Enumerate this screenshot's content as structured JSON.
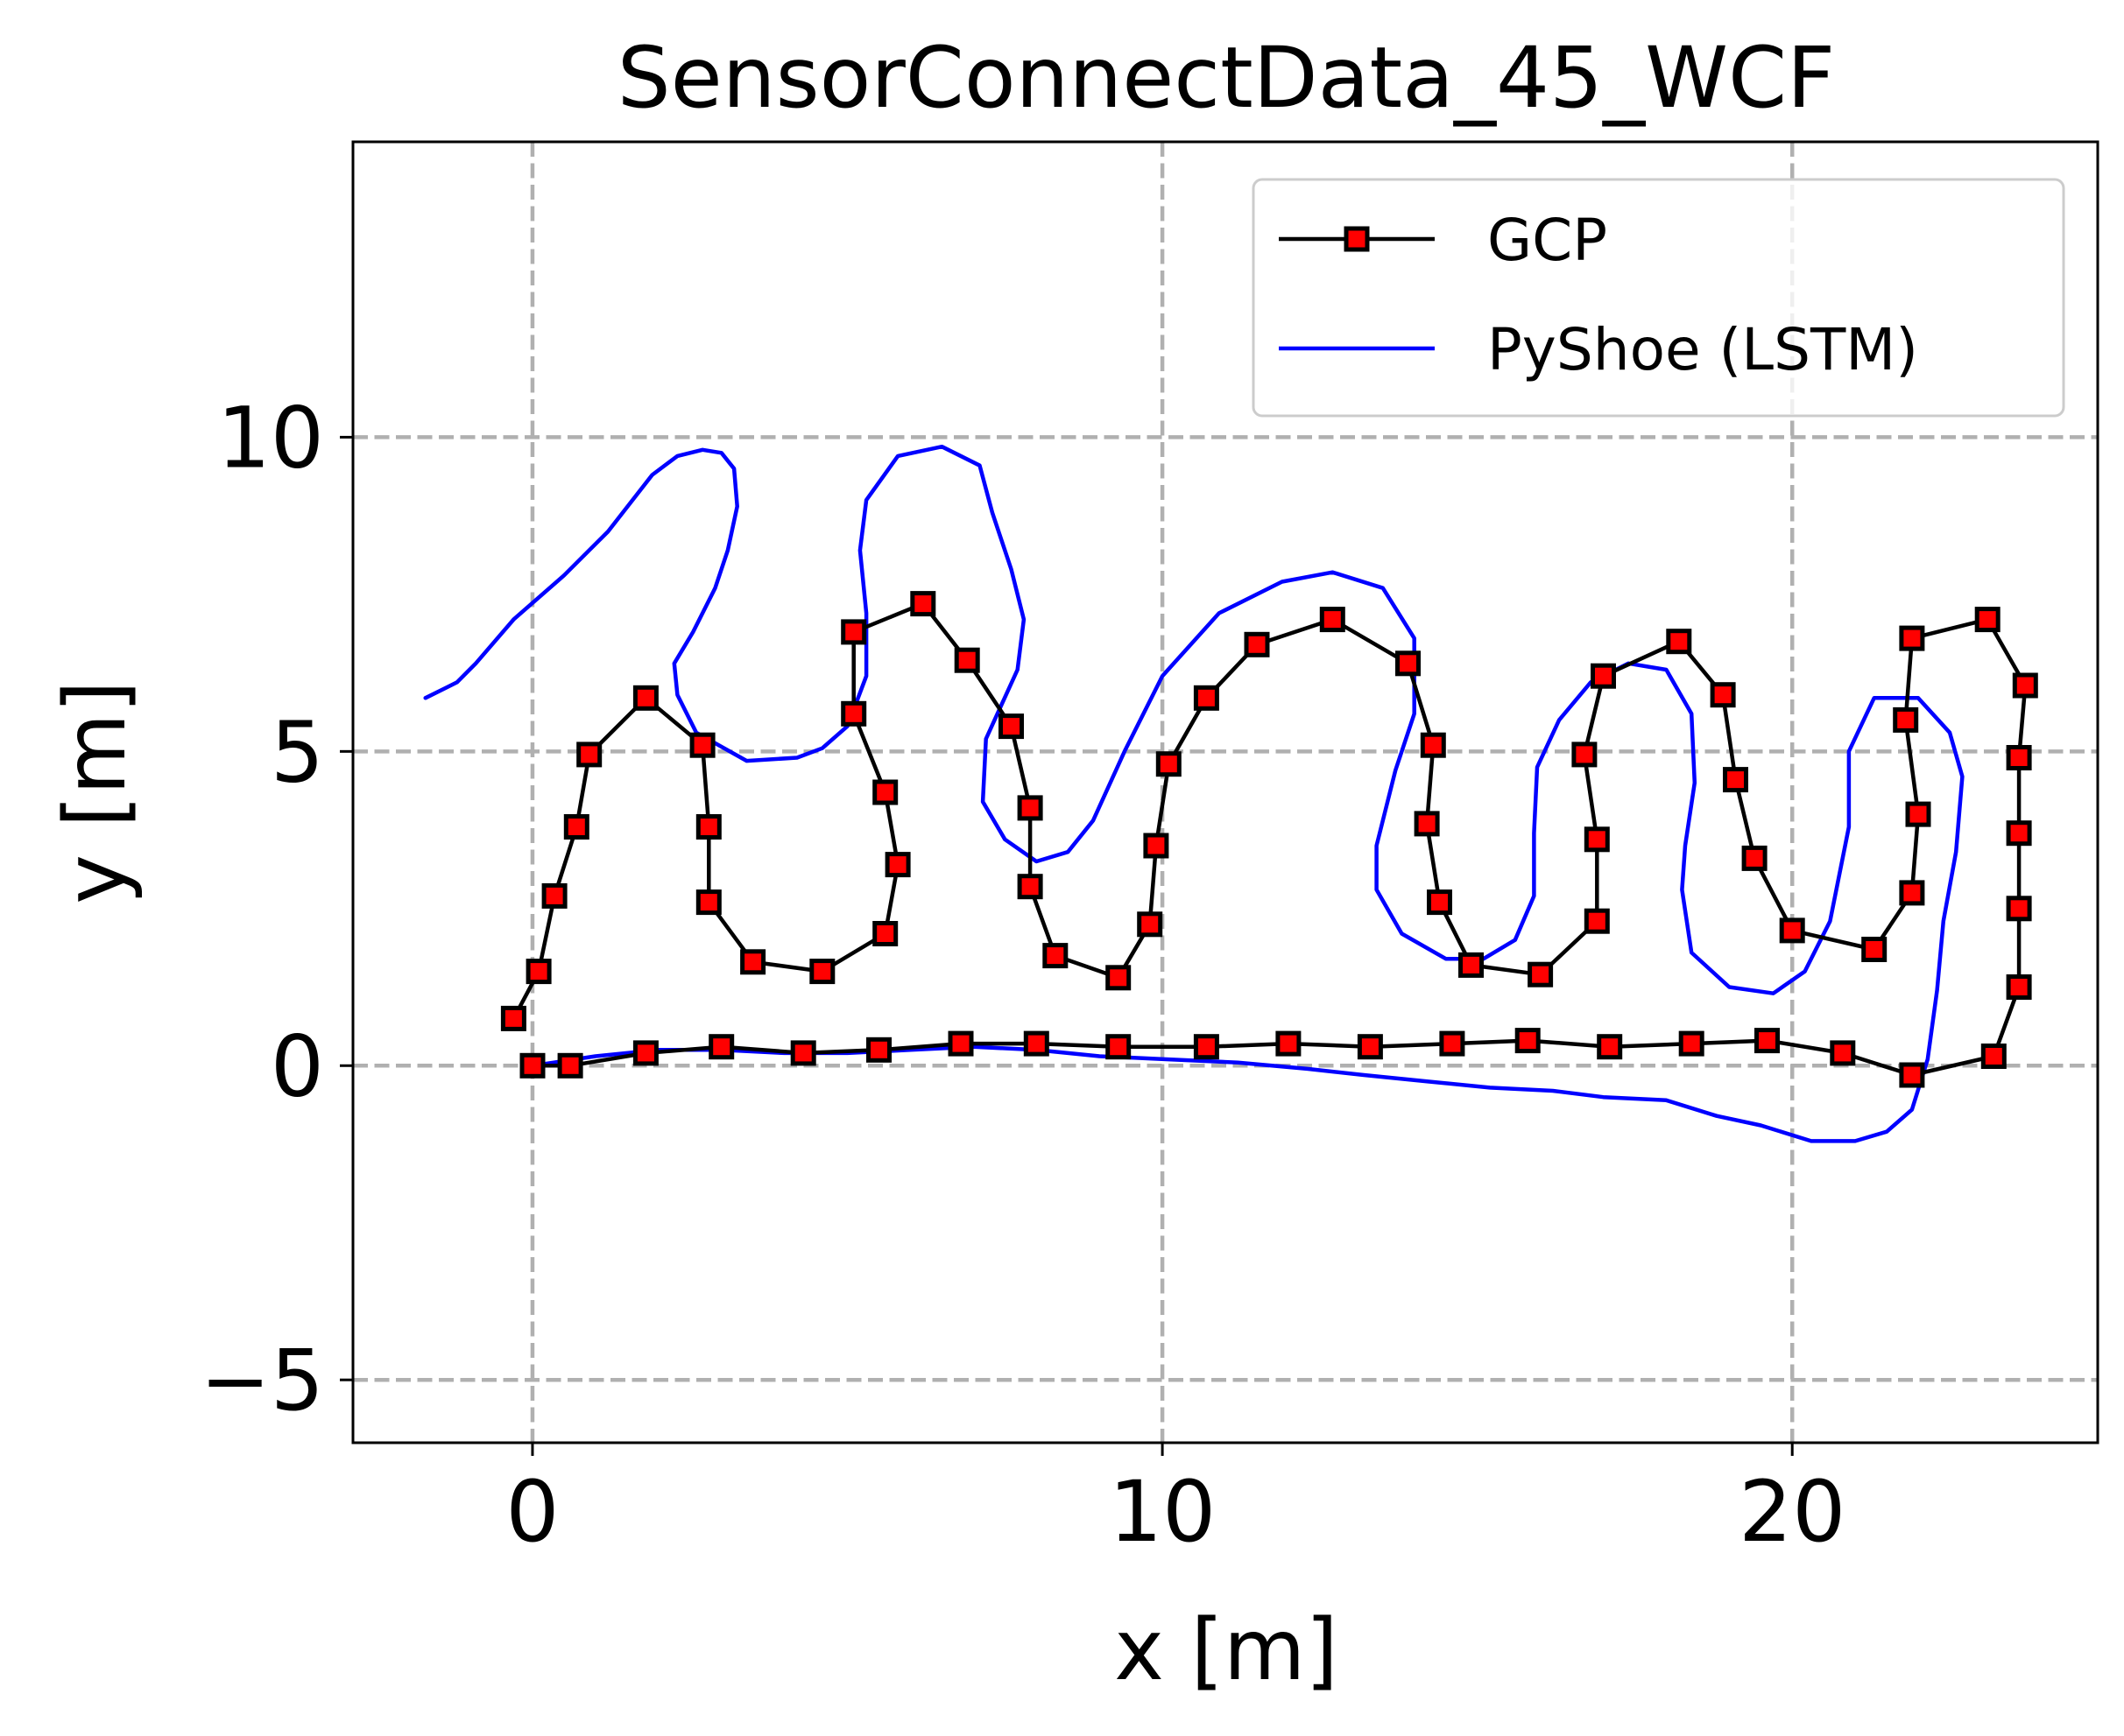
{
  "chart_data": {
    "type": "line",
    "title": "SensorConnectData_45_WCF",
    "xlabel": "x [m]",
    "ylabel": "y [m]",
    "xlim": [
      -2.85,
      24.85
    ],
    "ylim": [
      -6.0,
      14.7
    ],
    "xticks": [
      0,
      10,
      20
    ],
    "yticks": [
      -5,
      0,
      5,
      10
    ],
    "xtick_labels": [
      "0",
      "10",
      "20"
    ],
    "ytick_labels": [
      "−5",
      "0",
      "5",
      "10"
    ],
    "grid": true,
    "legend_position": "top-right",
    "series": [
      {
        "name": "GCP",
        "color": "#000000",
        "marker": "square",
        "marker_color": "#ff0000",
        "points": [
          [
            0.0,
            0.0
          ],
          [
            0.6,
            0.0
          ],
          [
            1.8,
            0.2
          ],
          [
            3.0,
            0.3
          ],
          [
            4.3,
            0.2
          ],
          [
            5.5,
            0.25
          ],
          [
            6.8,
            0.35
          ],
          [
            8.0,
            0.35
          ],
          [
            9.3,
            0.3
          ],
          [
            10.7,
            0.3
          ],
          [
            12.0,
            0.35
          ],
          [
            13.3,
            0.3
          ],
          [
            14.6,
            0.35
          ],
          [
            15.8,
            0.4
          ],
          [
            17.1,
            0.3
          ],
          [
            18.4,
            0.35
          ],
          [
            19.6,
            0.4
          ],
          [
            20.8,
            0.2
          ],
          [
            21.9,
            -0.15
          ],
          [
            23.2,
            0.15
          ],
          [
            23.6,
            1.25
          ],
          [
            23.6,
            2.5
          ],
          [
            23.6,
            3.7
          ],
          [
            23.6,
            4.9
          ],
          [
            23.7,
            6.05
          ],
          [
            23.1,
            7.1
          ],
          [
            21.9,
            6.8
          ],
          [
            21.8,
            5.5
          ],
          [
            22.0,
            4.0
          ],
          [
            21.9,
            2.75
          ],
          [
            21.3,
            1.85
          ],
          [
            20.0,
            2.15
          ],
          [
            19.4,
            3.3
          ],
          [
            19.1,
            4.55
          ],
          [
            18.9,
            5.9
          ],
          [
            18.2,
            6.75
          ],
          [
            17.0,
            6.2
          ],
          [
            16.7,
            4.95
          ],
          [
            16.9,
            3.6
          ],
          [
            16.9,
            2.3
          ],
          [
            16.0,
            1.45
          ],
          [
            14.9,
            1.6
          ],
          [
            14.4,
            2.6
          ],
          [
            14.2,
            3.85
          ],
          [
            14.3,
            5.1
          ],
          [
            13.9,
            6.4
          ],
          [
            12.7,
            7.1
          ],
          [
            11.5,
            6.7
          ],
          [
            10.7,
            5.85
          ],
          [
            10.1,
            4.8
          ],
          [
            9.9,
            3.5
          ],
          [
            9.8,
            2.25
          ],
          [
            9.3,
            1.4
          ],
          [
            8.3,
            1.75
          ],
          [
            7.9,
            2.85
          ],
          [
            7.9,
            4.1
          ],
          [
            7.6,
            5.4
          ],
          [
            6.9,
            6.45
          ],
          [
            6.2,
            7.35
          ],
          [
            5.1,
            6.9
          ],
          [
            5.1,
            5.6
          ],
          [
            5.6,
            4.35
          ],
          [
            5.8,
            3.2
          ],
          [
            5.6,
            2.1
          ],
          [
            4.6,
            1.5
          ],
          [
            3.5,
            1.65
          ],
          [
            2.8,
            2.6
          ],
          [
            2.8,
            3.8
          ],
          [
            2.7,
            5.1
          ],
          [
            1.8,
            5.85
          ],
          [
            0.9,
            4.95
          ],
          [
            0.7,
            3.8
          ],
          [
            0.35,
            2.7
          ],
          [
            0.1,
            1.5
          ],
          [
            -0.3,
            0.75
          ]
        ]
      },
      {
        "name": "PyShoe (LSTM)",
        "color": "#0000ff",
        "marker": "none",
        "points": [
          [
            -1.7,
            5.85
          ],
          [
            -1.2,
            6.1
          ],
          [
            -0.9,
            6.4
          ],
          [
            -0.3,
            7.1
          ],
          [
            0.5,
            7.8
          ],
          [
            1.2,
            8.5
          ],
          [
            1.9,
            9.4
          ],
          [
            2.3,
            9.7
          ],
          [
            2.7,
            9.8
          ],
          [
            3.0,
            9.75
          ],
          [
            3.2,
            9.5
          ],
          [
            3.25,
            8.9
          ],
          [
            3.1,
            8.2
          ],
          [
            2.9,
            7.6
          ],
          [
            2.55,
            6.9
          ],
          [
            2.25,
            6.4
          ],
          [
            2.3,
            5.9
          ],
          [
            2.6,
            5.3
          ],
          [
            3.4,
            4.85
          ],
          [
            4.2,
            4.9
          ],
          [
            4.6,
            5.05
          ],
          [
            5.0,
            5.4
          ],
          [
            5.3,
            6.2
          ],
          [
            5.3,
            7.2
          ],
          [
            5.2,
            8.2
          ],
          [
            5.3,
            9.0
          ],
          [
            5.8,
            9.7
          ],
          [
            6.5,
            9.85
          ],
          [
            7.1,
            9.55
          ],
          [
            7.3,
            8.8
          ],
          [
            7.6,
            7.9
          ],
          [
            7.8,
            7.1
          ],
          [
            7.7,
            6.3
          ],
          [
            7.2,
            5.2
          ],
          [
            7.15,
            4.2
          ],
          [
            7.5,
            3.6
          ],
          [
            8.0,
            3.25
          ],
          [
            8.5,
            3.4
          ],
          [
            8.9,
            3.9
          ],
          [
            9.4,
            5.0
          ],
          [
            10.0,
            6.2
          ],
          [
            10.9,
            7.2
          ],
          [
            11.9,
            7.7
          ],
          [
            12.7,
            7.85
          ],
          [
            13.5,
            7.6
          ],
          [
            14.0,
            6.8
          ],
          [
            14.0,
            5.6
          ],
          [
            13.7,
            4.7
          ],
          [
            13.4,
            3.5
          ],
          [
            13.4,
            2.8
          ],
          [
            13.8,
            2.1
          ],
          [
            14.5,
            1.7
          ],
          [
            15.1,
            1.7
          ],
          [
            15.6,
            2.0
          ],
          [
            15.9,
            2.7
          ],
          [
            15.9,
            3.7
          ],
          [
            15.95,
            4.75
          ],
          [
            16.3,
            5.5
          ],
          [
            16.8,
            6.1
          ],
          [
            17.4,
            6.4
          ],
          [
            18.0,
            6.3
          ],
          [
            18.4,
            5.6
          ],
          [
            18.45,
            4.5
          ],
          [
            18.3,
            3.5
          ],
          [
            18.25,
            2.8
          ],
          [
            18.4,
            1.8
          ],
          [
            19.0,
            1.25
          ],
          [
            19.7,
            1.15
          ],
          [
            20.2,
            1.5
          ],
          [
            20.6,
            2.3
          ],
          [
            20.9,
            3.8
          ],
          [
            20.9,
            5.0
          ],
          [
            21.3,
            5.85
          ],
          [
            22.0,
            5.85
          ],
          [
            22.5,
            5.3
          ],
          [
            22.7,
            4.6
          ],
          [
            22.6,
            3.4
          ],
          [
            22.4,
            2.3
          ],
          [
            22.3,
            1.2
          ],
          [
            22.15,
            0.1
          ],
          [
            21.9,
            -0.7
          ],
          [
            21.5,
            -1.05
          ],
          [
            21.0,
            -1.2
          ],
          [
            20.3,
            -1.2
          ],
          [
            19.5,
            -0.95
          ],
          [
            18.8,
            -0.8
          ],
          [
            18.0,
            -0.55
          ],
          [
            17.0,
            -0.5
          ],
          [
            16.2,
            -0.4
          ],
          [
            15.2,
            -0.35
          ],
          [
            14.2,
            -0.25
          ],
          [
            13.2,
            -0.15
          ],
          [
            12.3,
            -0.05
          ],
          [
            11.2,
            0.05
          ],
          [
            10.1,
            0.1
          ],
          [
            9.0,
            0.15
          ],
          [
            8.0,
            0.25
          ],
          [
            7.0,
            0.3
          ],
          [
            6.0,
            0.25
          ],
          [
            5.0,
            0.2
          ],
          [
            4.0,
            0.2
          ],
          [
            3.0,
            0.25
          ],
          [
            2.0,
            0.25
          ],
          [
            1.0,
            0.15
          ],
          [
            0.0,
            0.0
          ]
        ]
      }
    ]
  }
}
